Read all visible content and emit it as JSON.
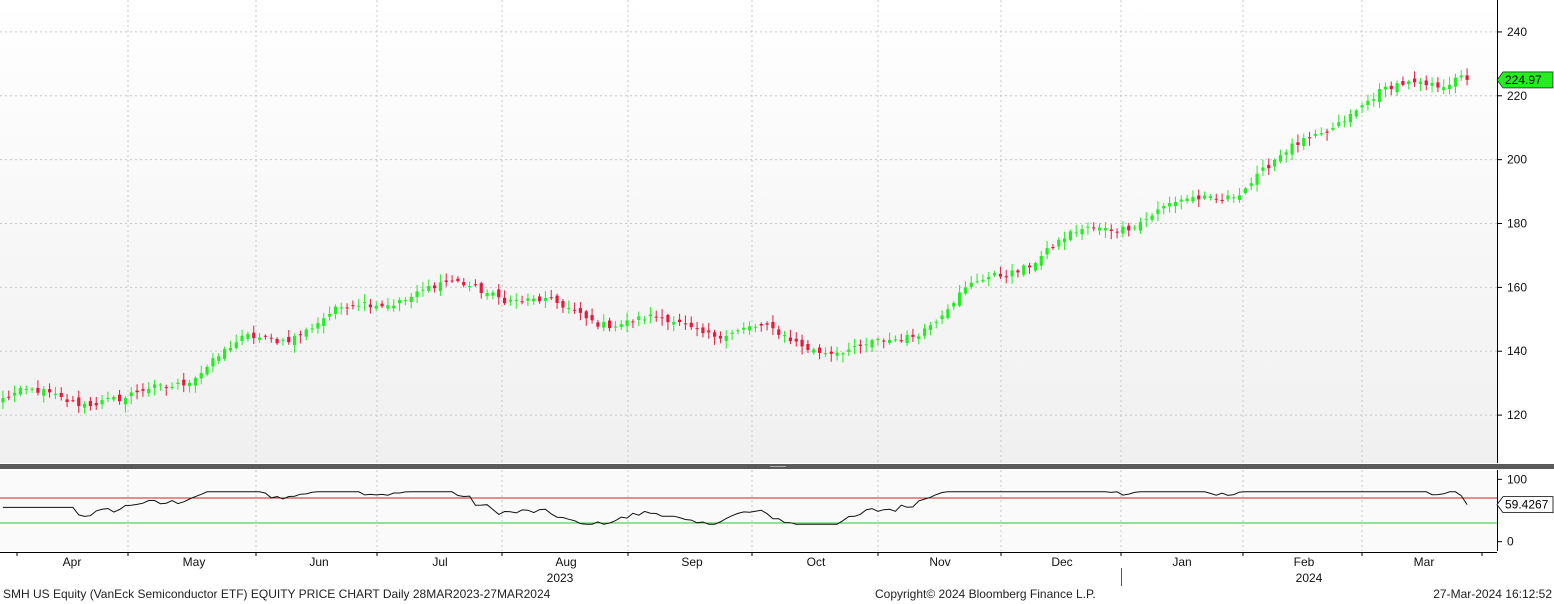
{
  "footer": {
    "left": "SMH US Equity (VanEck Semiconductor ETF) EQUITY PRICE CHART  Daily 28MAR2023-27MAR2024",
    "center": "Copyright© 2024 Bloomberg Finance L.P.",
    "right": "27-Mar-2024 16:12:52"
  },
  "colors": {
    "up": "#22ee22",
    "down": "#e8183c",
    "grid": "#c8c8c8",
    "rsi_upper_line": "#d22020",
    "rsi_lower_line": "#2fc82f",
    "last_price_label": "#22ee22"
  },
  "chart_data": [
    {
      "type": "candlestick",
      "title": "",
      "y_ticks": [
        120,
        140,
        160,
        180,
        200,
        220,
        240
      ],
      "ylim": [
        105,
        250
      ],
      "grid": true,
      "last_price_label": "224.97",
      "x_month_labels": [
        "Apr",
        "May",
        "Jun",
        "Jul",
        "Aug",
        "Sep",
        "Oct",
        "Nov",
        "Dec",
        "Jan",
        "Feb",
        "Mar"
      ],
      "x_year_labels": [
        "2023",
        "2024"
      ],
      "monthly_closes": [
        {
          "month": "2023-03",
          "close": 125
        },
        {
          "month": "2023-04",
          "close": 121
        },
        {
          "month": "2023-05",
          "close": 146
        },
        {
          "month": "2023-06",
          "close": 153
        },
        {
          "month": "2023-07",
          "close": 159
        },
        {
          "month": "2023-08",
          "close": 153
        },
        {
          "month": "2023-09",
          "close": 143
        },
        {
          "month": "2023-10",
          "close": 140
        },
        {
          "month": "2023-11",
          "close": 162
        },
        {
          "month": "2023-12",
          "close": 175
        },
        {
          "month": "2024-01",
          "close": 192
        },
        {
          "month": "2024-02",
          "close": 214
        },
        {
          "month": "2024-03",
          "close": 224.97
        }
      ]
    },
    {
      "type": "line",
      "title": "",
      "y_ticks": [
        0,
        100
      ],
      "ylim": [
        -15,
        115
      ],
      "reference_lines": [
        70,
        30
      ],
      "last_value_label": "59.4267",
      "last_value": 59.4267
    }
  ]
}
